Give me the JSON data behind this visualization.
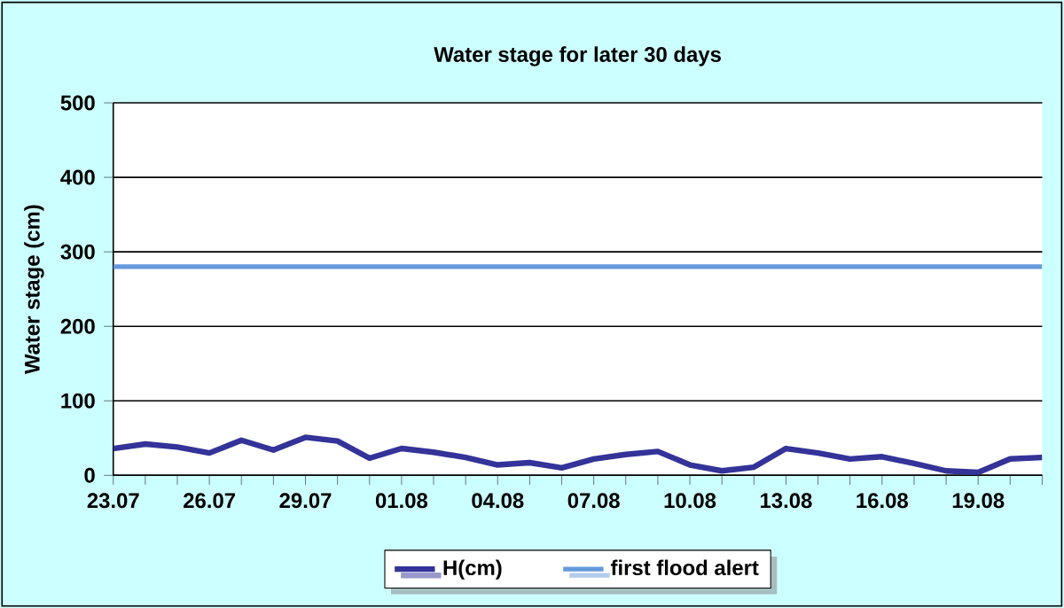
{
  "chart_data": {
    "type": "line",
    "title": "Water stage for later 30 days",
    "ylabel": "Water stage (cm)",
    "categories": [
      "23.07",
      null,
      null,
      "26.07",
      null,
      null,
      "29.07",
      null,
      null,
      "01.08",
      null,
      null,
      "04.08",
      null,
      null,
      "07.08",
      null,
      null,
      "10.08",
      null,
      null,
      "13.08",
      null,
      null,
      "16.08",
      null,
      null,
      "19.08",
      null,
      null
    ],
    "series": [
      {
        "name": "H(cm)",
        "color": "#333399",
        "values": [
          36,
          42,
          38,
          30,
          47,
          34,
          51,
          46,
          23,
          36,
          31,
          24,
          14,
          17,
          10,
          22,
          28,
          32,
          14,
          6,
          11,
          36,
          30,
          22,
          25,
          16,
          6,
          4,
          22,
          24
        ]
      }
    ],
    "ref_lines": [
      {
        "axis": "y",
        "value": 280,
        "label": "first flood alert",
        "color": "#6699dd"
      }
    ],
    "ylim": [
      0,
      500
    ],
    "yticks": [
      0,
      100,
      200,
      300,
      400,
      500
    ],
    "grid": "y",
    "legend": "bottom"
  }
}
